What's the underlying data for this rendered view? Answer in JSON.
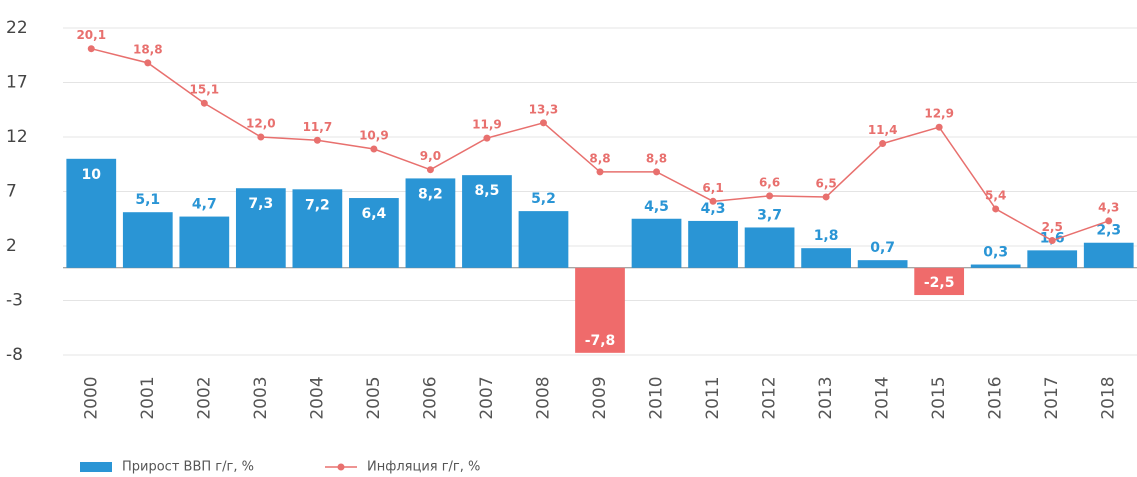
{
  "chart_data": {
    "type": "bar_line",
    "categories": [
      "2000",
      "2001",
      "2002",
      "2003",
      "2004",
      "2005",
      "2006",
      "2007",
      "2008",
      "2009",
      "2010",
      "2011",
      "2012",
      "2013",
      "2014",
      "2015",
      "2016",
      "2017",
      "2018"
    ],
    "series": [
      {
        "name": "Прирост ВВП г/г, %",
        "type": "bar",
        "color": "#2a95d5",
        "negative_color": "#ef6b6b",
        "values": [
          10,
          5.1,
          4.7,
          7.3,
          7.2,
          6.4,
          8.2,
          8.5,
          5.2,
          -7.8,
          4.5,
          4.3,
          3.7,
          1.8,
          0.7,
          -2.5,
          0.3,
          1.6,
          2.3
        ],
        "value_labels": [
          "10",
          "5,1",
          "4,7",
          "7,3",
          "7,2",
          "6,4",
          "8,2",
          "8,5",
          "5,2",
          "-7,8",
          "4,5",
          "4,3",
          "3,7",
          "1,8",
          "0,7",
          "-2,5",
          "0,3",
          "1,6",
          "2,3"
        ]
      },
      {
        "name": "Инфляция г/г, %",
        "type": "line",
        "color": "#e8706e",
        "values": [
          20.1,
          18.8,
          15.1,
          12.0,
          11.7,
          10.9,
          9.0,
          11.9,
          13.3,
          8.8,
          8.8,
          6.1,
          6.6,
          6.5,
          11.4,
          12.9,
          5.4,
          2.5,
          4.3
        ],
        "value_labels": [
          "20,1",
          "18,8",
          "15,1",
          "12,0",
          "11,7",
          "10,9",
          "9,0",
          "11,9",
          "13,3",
          "8,8",
          "8,8",
          "6,1",
          "6,6",
          "6,5",
          "11,4",
          "12,9",
          "5,4",
          "2,5",
          "4,3"
        ]
      }
    ],
    "ylim": [
      -8,
      22
    ],
    "yticks": [
      22,
      17,
      12,
      7,
      2,
      -3,
      -8
    ],
    "grid": true
  }
}
